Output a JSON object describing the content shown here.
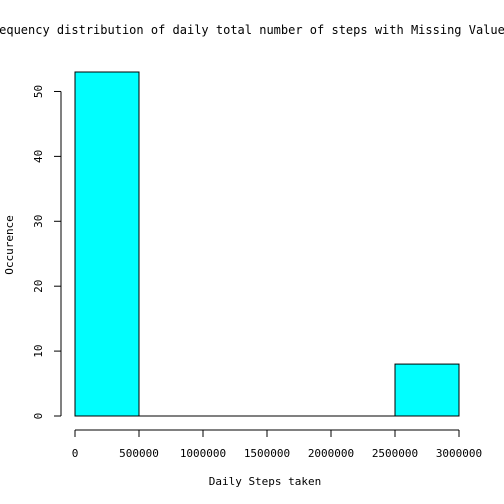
{
  "chart_data": {
    "type": "bar",
    "title": "Frequency distribution of daily total number of steps with Missing Value a",
    "xlabel": "Daily Steps taken",
    "ylabel": "Occurence",
    "bins": [
      {
        "x_start": 0,
        "x_end": 500000,
        "count": 53
      },
      {
        "x_start": 500000,
        "x_end": 1000000,
        "count": 0
      },
      {
        "x_start": 1000000,
        "x_end": 1500000,
        "count": 0
      },
      {
        "x_start": 1500000,
        "x_end": 2000000,
        "count": 0
      },
      {
        "x_start": 2000000,
        "x_end": 2500000,
        "count": 0
      },
      {
        "x_start": 2500000,
        "x_end": 3000000,
        "count": 8
      }
    ],
    "xlim": [
      0,
      3000000
    ],
    "ylim": [
      0,
      53
    ],
    "x_ticks": [
      "0",
      "500000",
      "1000000",
      "1500000",
      "2000000",
      "2500000",
      "3000000"
    ],
    "y_ticks": [
      "0",
      "10",
      "20",
      "30",
      "40",
      "50"
    ],
    "bar_color": "#00ffff",
    "grid": false
  }
}
